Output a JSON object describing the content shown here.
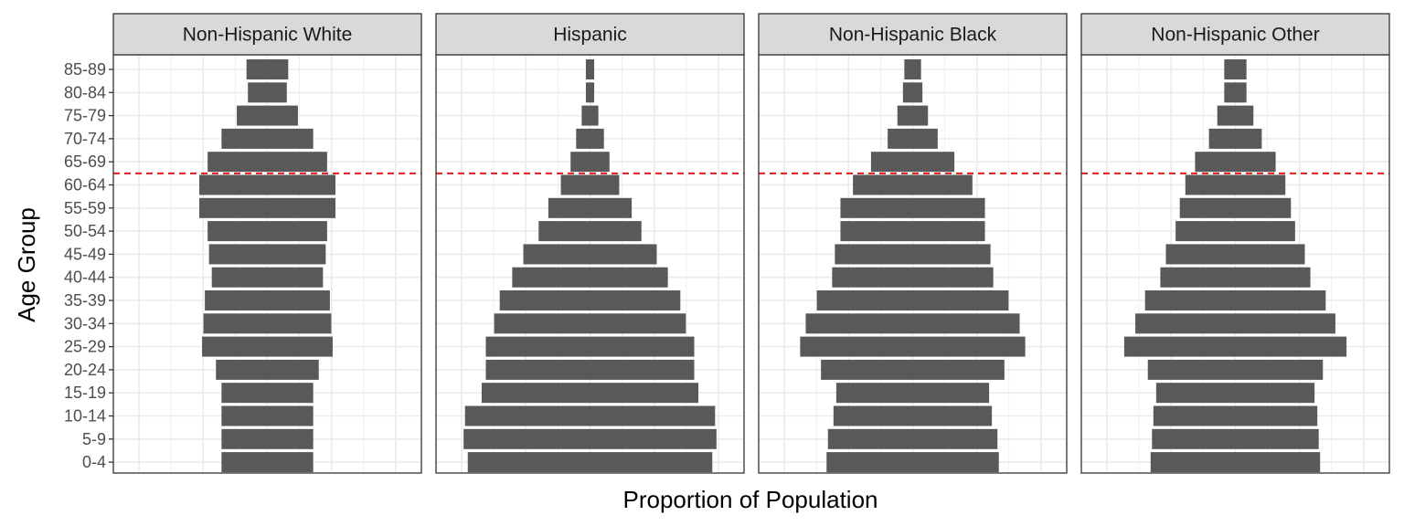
{
  "chart_data": {
    "type": "bar",
    "orientation": "horizontal",
    "style": "population pyramid, faceted",
    "xlabel": "Proportion of Population",
    "ylabel": "Age Group",
    "x_tick_labels_shown": false,
    "grid": true,
    "bar_color": "#595959",
    "reference_line": {
      "between_categories": [
        "60-64",
        "65-69"
      ],
      "color": "#e31a1c",
      "style": "dashed"
    },
    "categories": [
      "0-4",
      "5-9",
      "10-14",
      "15-19",
      "20-24",
      "25-29",
      "30-34",
      "35-39",
      "40-44",
      "45-49",
      "50-54",
      "55-59",
      "60-64",
      "65-69",
      "70-74",
      "75-79",
      "80-84",
      "85-89"
    ],
    "facets": [
      {
        "name": "Non-Hispanic White",
        "values": [
          0.33,
          0.33,
          0.33,
          0.33,
          0.37,
          0.47,
          0.46,
          0.45,
          0.4,
          0.42,
          0.43,
          0.49,
          0.49,
          0.43,
          0.33,
          0.22,
          0.14,
          0.15
        ]
      },
      {
        "name": "Hispanic",
        "values": [
          0.88,
          0.91,
          0.9,
          0.78,
          0.75,
          0.75,
          0.69,
          0.65,
          0.56,
          0.48,
          0.37,
          0.3,
          0.21,
          0.14,
          0.1,
          0.06,
          0.03,
          0.03
        ]
      },
      {
        "name": "Non-Hispanic Black",
        "values": [
          0.62,
          0.61,
          0.57,
          0.55,
          0.66,
          0.81,
          0.77,
          0.69,
          0.58,
          0.56,
          0.52,
          0.52,
          0.43,
          0.3,
          0.18,
          0.11,
          0.07,
          0.06
        ]
      },
      {
        "name": "Non-Hispanic Other",
        "values": [
          0.61,
          0.6,
          0.59,
          0.57,
          0.63,
          0.8,
          0.72,
          0.65,
          0.54,
          0.5,
          0.43,
          0.4,
          0.36,
          0.29,
          0.19,
          0.13,
          0.08,
          0.08
        ]
      }
    ]
  }
}
